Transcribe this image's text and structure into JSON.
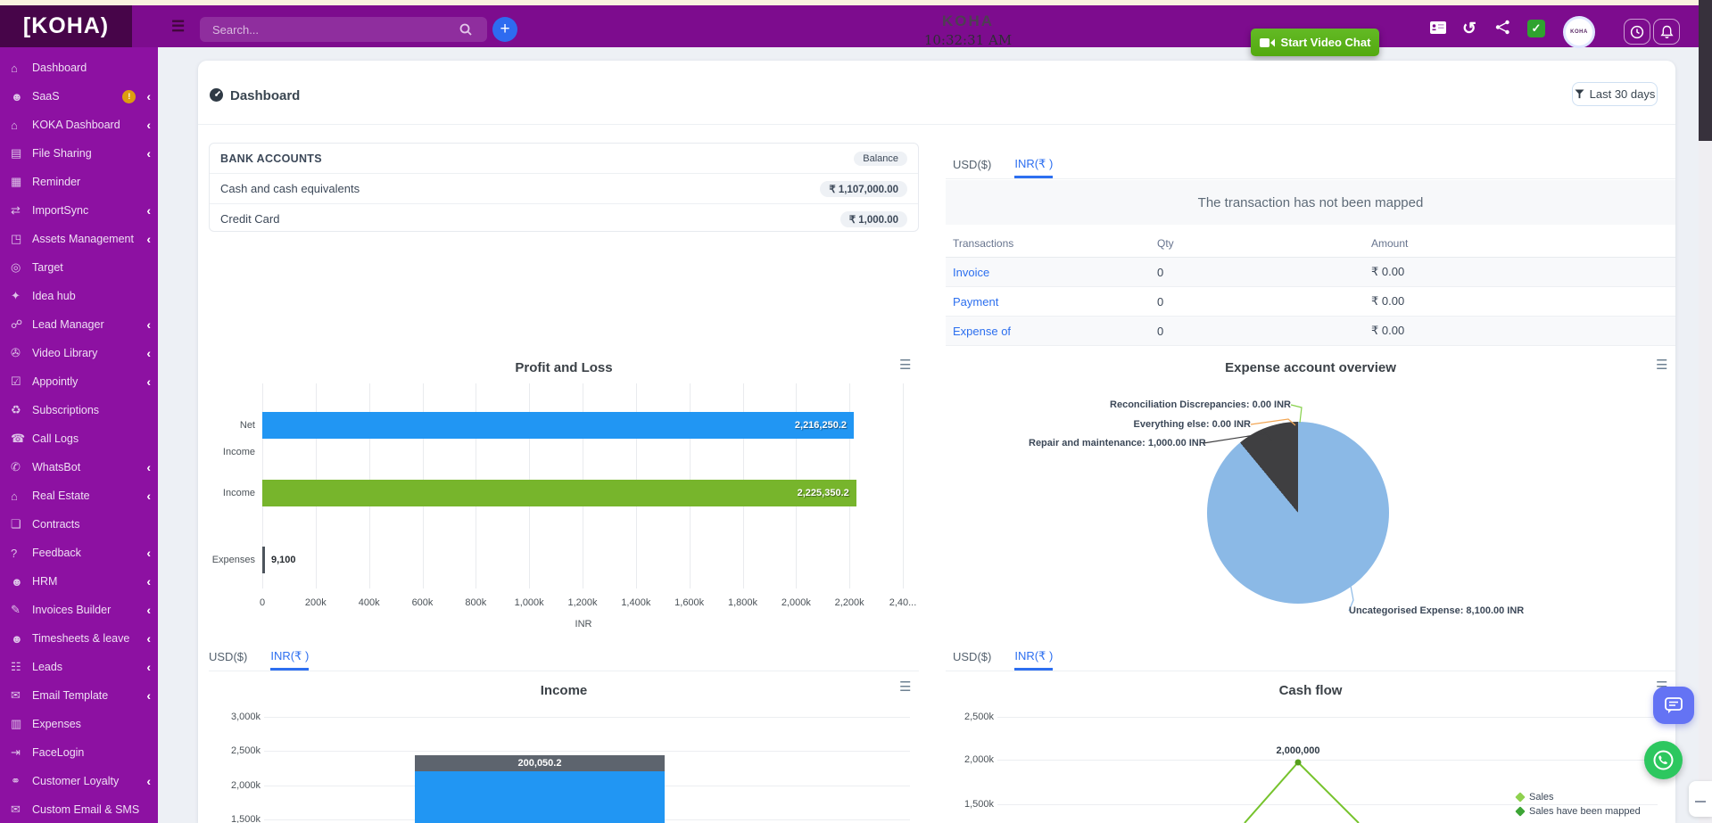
{
  "navbar": {
    "logo_text": "KOHA",
    "logo_brackets": [
      "[",
      ")"
    ],
    "search_placeholder": "Search...",
    "center_brand": "KOHA",
    "time": "10:32:31 AM",
    "video_chat_label": "Start Video Chat",
    "avatar_text": "KOHA",
    "colors": {
      "navbar": "#7d0c8e",
      "logo_bg": "#470549",
      "accent_blue": "#2e6bf0",
      "green_button": "#5cb616"
    }
  },
  "sidebar": {
    "color": "#8d11a2",
    "items": [
      {
        "label": "Dashboard",
        "icon": "home-icon",
        "glyph": "⌂",
        "chevron": false
      },
      {
        "label": "SaaS",
        "icon": "users-icon",
        "glyph": "☻",
        "chevron": true,
        "badge": "!"
      },
      {
        "label": "KOKA Dashboard",
        "icon": "home-icon",
        "glyph": "⌂",
        "chevron": true
      },
      {
        "label": "File Sharing",
        "icon": "folder-icon",
        "glyph": "▤",
        "chevron": true
      },
      {
        "label": "Reminder",
        "icon": "calendar-icon",
        "glyph": "▦",
        "chevron": false
      },
      {
        "label": "ImportSync",
        "icon": "sync-icon",
        "glyph": "⇄",
        "chevron": true
      },
      {
        "label": "Assets Management",
        "icon": "box-icon",
        "glyph": "◳",
        "chevron": true
      },
      {
        "label": "Target",
        "icon": "target-icon",
        "glyph": "◎",
        "chevron": false
      },
      {
        "label": "Idea hub",
        "icon": "idea-icon",
        "glyph": "✦",
        "chevron": false
      },
      {
        "label": "Lead Manager",
        "icon": "org-icon",
        "glyph": "☍",
        "chevron": true
      },
      {
        "label": "Video Library",
        "icon": "video-icon",
        "glyph": "✇",
        "chevron": true
      },
      {
        "label": "Appointly",
        "icon": "calendar-check-icon",
        "glyph": "☑",
        "chevron": true
      },
      {
        "label": "Subscriptions",
        "icon": "refresh-icon",
        "glyph": "♻",
        "chevron": false
      },
      {
        "label": "Call Logs",
        "icon": "phone-icon",
        "glyph": "☎",
        "chevron": false
      },
      {
        "label": "WhatsBot",
        "icon": "whatsapp-icon",
        "glyph": "✆",
        "chevron": true
      },
      {
        "label": "Real Estate",
        "icon": "home-check-icon",
        "glyph": "⌂",
        "chevron": true
      },
      {
        "label": "Contracts",
        "icon": "document-icon",
        "glyph": "❏",
        "chevron": false
      },
      {
        "label": "Feedback",
        "icon": "question-icon",
        "glyph": "?",
        "chevron": true
      },
      {
        "label": "HRM",
        "icon": "person-icon",
        "glyph": "☻",
        "chevron": true
      },
      {
        "label": "Invoices Builder",
        "icon": "pencil-icon",
        "glyph": "✎",
        "chevron": true
      },
      {
        "label": "Timesheets & leave",
        "icon": "person-icon",
        "glyph": "☻",
        "chevron": true
      },
      {
        "label": "Leads",
        "icon": "people-icon",
        "glyph": "☷",
        "chevron": true
      },
      {
        "label": "Email Template",
        "icon": "envelope-icon",
        "glyph": "✉",
        "chevron": true
      },
      {
        "label": "Expenses",
        "icon": "document-icon",
        "glyph": "▥",
        "chevron": false
      },
      {
        "label": "FaceLogin",
        "icon": "login-icon",
        "glyph": "⇥",
        "chevron": false
      },
      {
        "label": "Customer Loyalty",
        "icon": "handshake-icon",
        "glyph": "⚭",
        "chevron": true
      },
      {
        "label": "Custom Email & SMS",
        "icon": "envelope-icon",
        "glyph": "✉",
        "chevron": false
      }
    ]
  },
  "header": {
    "title": "Dashboard",
    "filter_label": "Last 30 days"
  },
  "bank": {
    "title": "BANK ACCOUNTS",
    "balance_label": "Balance",
    "rows": [
      {
        "name": "Cash and cash equivalents",
        "value": "₹ 1,107,000.00"
      },
      {
        "name": "Credit Card",
        "value": "₹ 1,000.00"
      }
    ]
  },
  "currency_tabs": {
    "usd": "USD($)",
    "inr": "INR(₹ )"
  },
  "transactions": {
    "banner": "The transaction has not been mapped",
    "columns": [
      "Transactions",
      "Qty",
      "Amount"
    ],
    "rows": [
      {
        "name": "Invoice",
        "qty": "0",
        "amount": "₹ 0.00"
      },
      {
        "name": "Payment",
        "qty": "0",
        "amount": "₹ 0.00"
      },
      {
        "name": "Expense of",
        "qty": "0",
        "amount": "₹ 0.00"
      }
    ]
  },
  "chart_data": [
    {
      "id": "profit-and-loss",
      "type": "bar",
      "orientation": "horizontal",
      "title": "Profit and Loss",
      "categories": [
        "Net Income",
        "Income",
        "Expenses"
      ],
      "values": [
        2216250.2,
        2225350.2,
        9100
      ],
      "value_labels": [
        "2,216,250.2",
        "2,225,350.2",
        "9,100"
      ],
      "colors": [
        "#2196f3",
        "#77b52c",
        "#4d545c"
      ],
      "xlabel": "INR",
      "xlim": [
        0,
        2400000
      ],
      "grid": "vertical",
      "xticks": [
        "0",
        "200k",
        "400k",
        "600k",
        "800k",
        "1,000k",
        "1,200k",
        "1,400k",
        "1,600k",
        "1,800k",
        "2,000k",
        "2,200k",
        "2,40..."
      ]
    },
    {
      "id": "expense-account-overview",
      "type": "pie",
      "title": "Expense account overview",
      "slices": [
        {
          "label": "Uncategorised Expense: 8,100.00 INR",
          "value": 8100,
          "color": "#8bb9e6"
        },
        {
          "label": "Repair and maintenance: 1,000.00 INR",
          "value": 1000,
          "color": "#3f3f41"
        },
        {
          "label": "Everything else: 0.00 INR",
          "value": 0,
          "color": "#f2a654"
        },
        {
          "label": "Reconciliation Discrepancies: 0.00 INR",
          "value": 0,
          "color": "#86d04a"
        }
      ]
    },
    {
      "id": "income",
      "type": "bar",
      "stacked": true,
      "title": "Income",
      "categories": [
        ""
      ],
      "segments": [
        {
          "value": 2225350.2,
          "color": "#2196f3",
          "label": ""
        },
        {
          "value": 200050.2,
          "color": "#5d646e",
          "label": "200,050.2"
        }
      ],
      "yticks": [
        "3,000k",
        "2,500k",
        "2,000k",
        "1,500k"
      ],
      "ylim": [
        1500000,
        3000000
      ]
    },
    {
      "id": "cash-flow",
      "type": "line",
      "title": "Cash flow",
      "yticks": [
        "2,500k",
        "2,000k",
        "1,500k"
      ],
      "peak": {
        "label": "2,000,000",
        "value": 2000000
      },
      "series_color": "#76c32d",
      "legend": [
        {
          "name": "Sales",
          "color": "#8fd14f"
        },
        {
          "name": "Sales have been mapped",
          "color": "#3da535"
        }
      ]
    }
  ]
}
